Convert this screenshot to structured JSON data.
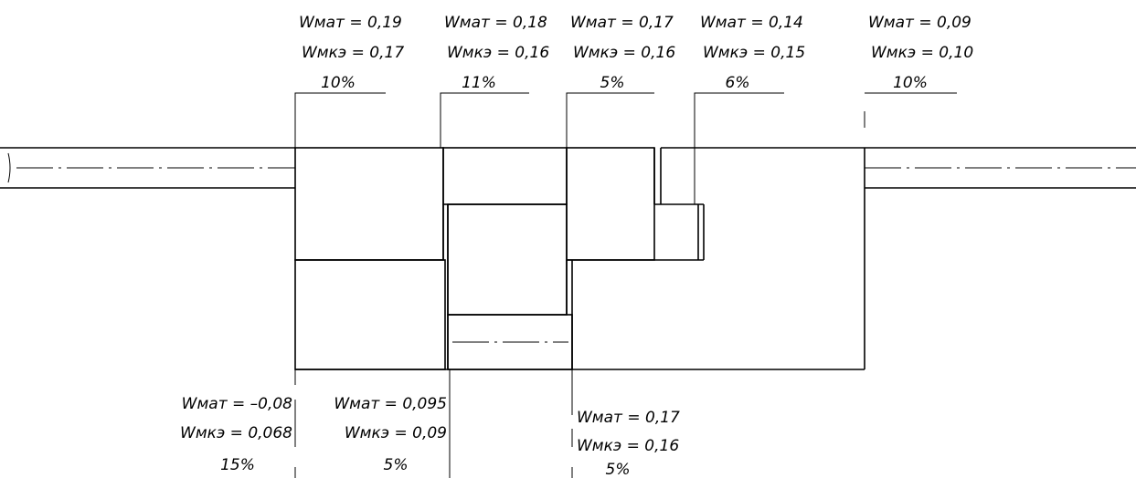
{
  "annotations_top": [
    {
      "w_mat": "Wмат = 0,19",
      "w_mkz": "Wмкэ = 0,17",
      "percent": "10%"
    },
    {
      "w_mat": "Wмат = 0,18",
      "w_mkz": "Wмкэ = 0,16",
      "percent": "11%"
    },
    {
      "w_mat": "Wмат = 0,17",
      "w_mkz": "Wмкэ = 0,16",
      "percent": "5%"
    },
    {
      "w_mat": "Wмат = 0,14",
      "w_mkz": "Wмкэ = 0,15",
      "percent": "6%"
    },
    {
      "w_mat": "Wмат = 0,09",
      "w_mkz": "Wмкэ = 0,10",
      "percent": "10%"
    }
  ],
  "annotations_bottom": [
    {
      "w_mat": "Wмат = –0,08",
      "w_mkz": "Wмкэ = 0,068",
      "percent": "15%"
    },
    {
      "w_mat": "Wмат = 0,095",
      "w_mkz": "Wмкэ = 0,09",
      "percent": "5%"
    },
    {
      "w_mat": "Wмат = 0,17",
      "w_mkz": "Wмкэ = 0,16",
      "percent": "5%"
    }
  ]
}
